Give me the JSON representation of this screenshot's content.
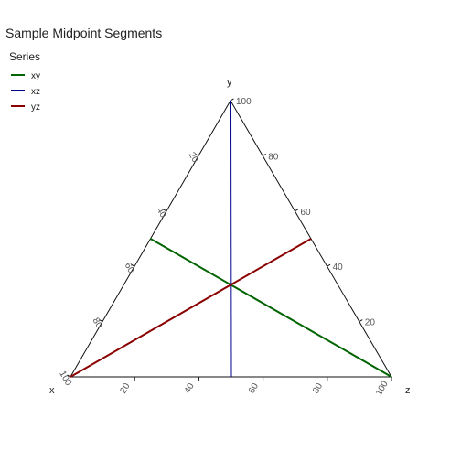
{
  "chart_data": {
    "type": "ternary",
    "title": "Sample Midpoint Segments",
    "legend": {
      "title": "Series",
      "position": "top-left",
      "entries": [
        {
          "name": "xy",
          "color": "#006400"
        },
        {
          "name": "xz",
          "color": "#00008b"
        },
        {
          "name": "yz",
          "color": "#8b0000"
        }
      ]
    },
    "axes": {
      "x": {
        "label": "x"
      },
      "y": {
        "label": "y"
      },
      "z": {
        "label": "z"
      }
    },
    "ticks": [
      20,
      40,
      60,
      80,
      100
    ],
    "tick_labels": [
      "20",
      "40",
      "60",
      "80",
      "100"
    ],
    "series": [
      {
        "name": "xy",
        "color": "#006400",
        "points": [
          {
            "x": 50,
            "y": 50,
            "z": 0
          },
          {
            "x": 0,
            "y": 0,
            "z": 100
          }
        ]
      },
      {
        "name": "xz",
        "color": "#00008b",
        "points": [
          {
            "x": 50,
            "y": 0,
            "z": 50
          },
          {
            "x": 0,
            "y": 100,
            "z": 0
          }
        ]
      },
      {
        "name": "yz",
        "color": "#8b0000",
        "points": [
          {
            "x": 0,
            "y": 50,
            "z": 50
          },
          {
            "x": 100,
            "y": 0,
            "z": 0
          }
        ]
      }
    ],
    "grid": false
  }
}
